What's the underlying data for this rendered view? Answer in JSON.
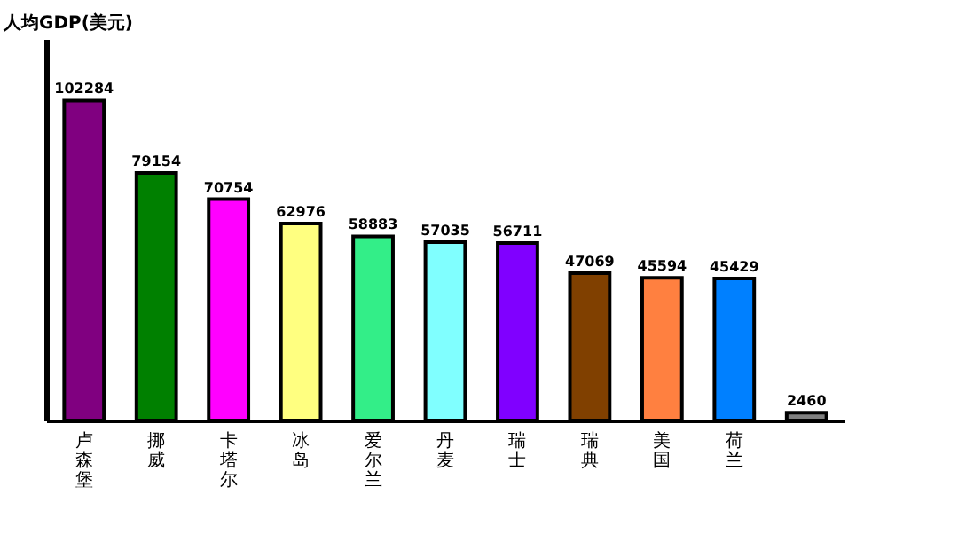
{
  "chart_data": {
    "type": "bar",
    "ylabel": "人均GDP(美元)",
    "categories": [
      "卢森堡",
      "挪威",
      "卡塔尔",
      "冰岛",
      "爱尔兰",
      "丹麦",
      "瑞士",
      "瑞典",
      "美国",
      "荷兰",
      null
    ],
    "values": [
      102284,
      79154,
      70754,
      62976,
      58883,
      57035,
      56711,
      47069,
      45594,
      45429,
      2460
    ],
    "colors": [
      "#800080",
      "#008000",
      "#ff00ff",
      "#ffff80",
      "#33ee88",
      "#80ffff",
      "#8000ff",
      "#804000",
      "#ff8040",
      "#0080ff",
      "#808080"
    ],
    "ylim": [
      0,
      122000
    ],
    "tick_labels": "x",
    "data_labels": true
  }
}
